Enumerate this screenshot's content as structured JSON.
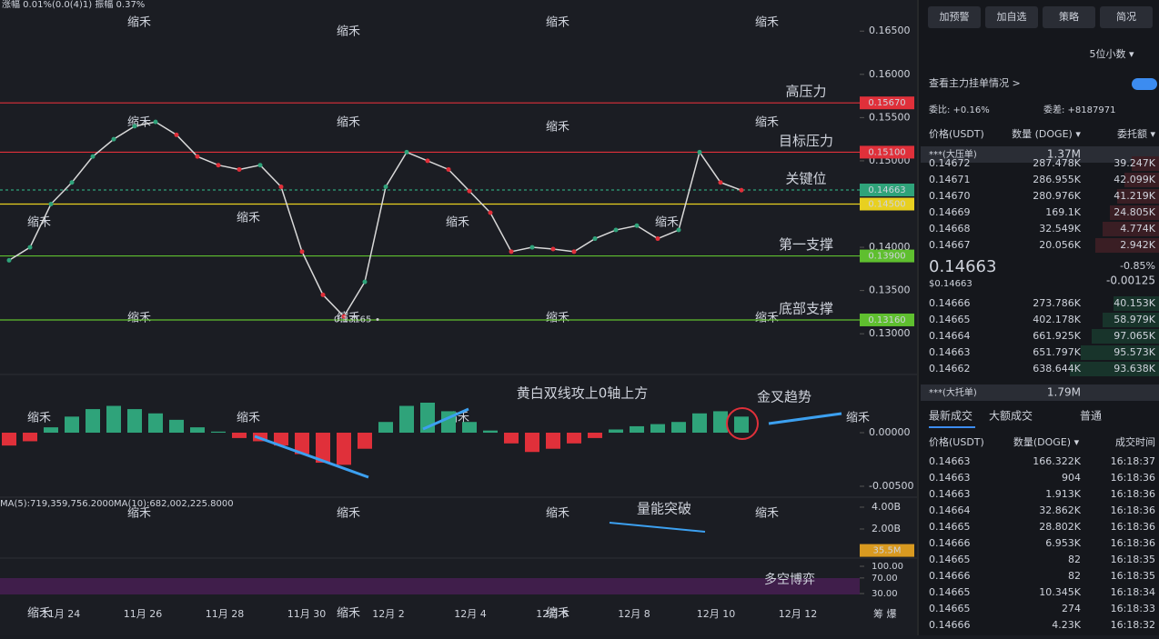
{
  "header": {
    "change_text": "涨幅 0.01%(0.0(4)1)  振幅 0.37%"
  },
  "watermark": "缩禾",
  "price_chart": {
    "type": "line",
    "color": "#d9d9d9",
    "values": [
      0.1385,
      0.14,
      0.145,
      0.1475,
      0.1505,
      0.1525,
      0.154,
      0.1545,
      0.153,
      0.1505,
      0.1495,
      0.149,
      0.1495,
      0.147,
      0.1395,
      0.1345,
      0.132,
      0.136,
      0.147,
      0.151,
      0.15,
      0.149,
      0.1465,
      0.144,
      0.1395,
      0.14,
      0.1398,
      0.1395,
      0.141,
      0.142,
      0.1425,
      0.141,
      0.142,
      0.151,
      0.1475,
      0.1466
    ],
    "ylim": [
      0.1255,
      0.1686
    ],
    "yticks": [
      {
        "value": 0.165,
        "label": "0.16500"
      },
      {
        "value": 0.16,
        "label": "0.16000"
      },
      {
        "value": 0.155,
        "label": "0.15500"
      },
      {
        "value": 0.15,
        "label": "0.15000"
      },
      {
        "value": 0.14,
        "label": "0.14000"
      },
      {
        "value": 0.135,
        "label": "0.13500"
      },
      {
        "value": 0.13,
        "label": "0.13000"
      }
    ],
    "levels": [
      {
        "label": "高压力",
        "value": 0.1567,
        "value_label": "0.15670",
        "color": "#e0303a"
      },
      {
        "label": "目标压力",
        "value": 0.151,
        "value_label": "0.15100",
        "color": "#e0303a"
      },
      {
        "label": "关键位",
        "value": 0.14663,
        "value_label": "0.14663",
        "color": "#2fa37a"
      },
      {
        "label": "第一支撑",
        "value": 0.139,
        "value_label": "0.13900",
        "color": "#5fbf2f"
      },
      {
        "label": "底部支撑",
        "value": 0.1316,
        "value_label": "0.13160",
        "color": "#5fbf2f"
      }
    ],
    "extra_level": {
      "value": 0.145,
      "label": "0.14500",
      "color": "#e8d020"
    },
    "low_marker": {
      "value": 0.13165,
      "label": "0.13165"
    }
  },
  "macd": {
    "type": "bar",
    "annotation": "黄白双线攻上0轴上方",
    "annotation2": "金叉趋势",
    "values": [
      -0.0012,
      -0.0008,
      0.0005,
      0.0015,
      0.0022,
      0.0025,
      0.0022,
      0.0018,
      0.0012,
      0.0005,
      0.0001,
      -0.0005,
      -0.0008,
      -0.0012,
      -0.002,
      -0.0028,
      -0.003,
      -0.0015,
      0.001,
      0.0025,
      0.0028,
      0.002,
      0.001,
      0.0002,
      -0.001,
      -0.0018,
      -0.0015,
      -0.001,
      -0.0005,
      0.0003,
      0.0006,
      0.0008,
      0.001,
      0.0018,
      0.002,
      0.0015
    ],
    "ylim": [
      -0.00585,
      0.00475
    ],
    "yticks": [
      {
        "value": 0,
        "label": "0.00000"
      },
      {
        "value": -0.005,
        "label": "-0.00500"
      }
    ]
  },
  "volume": {
    "ma5": "MA(5):719,359,756.2000",
    "ma10": "MA(10):682,002,225.8000",
    "annotation": "量能突破",
    "ylim": [
      0,
      5080000000
    ],
    "yticks": [
      {
        "value": 4000000000,
        "label": "4.00B"
      },
      {
        "value": 2000000000,
        "label": "2.00B"
      }
    ],
    "current": {
      "value": 35500000,
      "label": "35.5M"
    }
  },
  "rsi": {
    "annotation": "多空博弈",
    "ylim": [
      2,
      118.7
    ],
    "yticks": [
      {
        "value": 100,
        "label": "100.00"
      },
      {
        "value": 70,
        "label": "70.00"
      },
      {
        "value": 30,
        "label": "30.00"
      }
    ]
  },
  "x_axis": [
    "11月 24",
    "11月 26",
    "11月 28",
    "11月 30",
    "12月 2",
    "12月 4",
    "12月 6",
    "12月 8",
    "12月 10",
    "12月 12"
  ],
  "corner": "筹 爆",
  "panel": {
    "buttons": [
      "加预警",
      "加自选",
      "策略",
      "简况"
    ],
    "decimals": "5位小数 ▾",
    "main_orders": "查看主力挂单情况 >",
    "ratio": "委比: +0.16%",
    "diff": "委差: +8187971",
    "book_header": [
      "价格(USDT)",
      "数量 (DOGE) ▾",
      "委托额 ▾"
    ],
    "big_ask": {
      "label": "***(大压单)",
      "value": "1.37M"
    },
    "asks": [
      [
        "0.14672",
        "287.478K",
        "39.247K"
      ],
      [
        "0.14671",
        "286.955K",
        "42.099K"
      ],
      [
        "0.14670",
        "280.976K",
        "41.219K"
      ],
      [
        "0.14669",
        "169.1K",
        "24.805K"
      ],
      [
        "0.14668",
        "32.549K",
        "4.774K"
      ],
      [
        "0.14667",
        "20.056K",
        "2.942K"
      ]
    ],
    "last": {
      "price": "0.14663",
      "usd": "$0.14663",
      "pct": "-0.85%",
      "chg": "-0.00125"
    },
    "bids": [
      [
        "0.14666",
        "273.786K",
        "40.153K"
      ],
      [
        "0.14665",
        "402.178K",
        "58.979K"
      ],
      [
        "0.14664",
        "661.925K",
        "97.065K"
      ],
      [
        "0.14663",
        "651.797K",
        "95.573K"
      ],
      [
        "0.14662",
        "638.644K",
        "93.638K"
      ]
    ],
    "big_bid": {
      "label": "***(大托单)",
      "value": "1.79M"
    },
    "tabs": [
      "最新成交",
      "大额成交",
      "普通"
    ],
    "trade_header": [
      "价格(USDT)",
      "数量(DOGE) ▾",
      "成交时间"
    ],
    "trades": [
      [
        "0.14663",
        "166.322K",
        "16:18:37",
        "buy"
      ],
      [
        "0.14663",
        "904",
        "16:18:36",
        "buy"
      ],
      [
        "0.14663",
        "1.913K",
        "16:18:36",
        "sell"
      ],
      [
        "0.14664",
        "32.862K",
        "16:18:36",
        "sell"
      ],
      [
        "0.14665",
        "28.802K",
        "16:18:36",
        "sell"
      ],
      [
        "0.14666",
        "6.953K",
        "16:18:36",
        "buy"
      ],
      [
        "0.14665",
        "82",
        "16:18:35",
        "sell"
      ],
      [
        "0.14666",
        "82",
        "16:18:35",
        "buy"
      ],
      [
        "0.14665",
        "10.345K",
        "16:18:34",
        "sell"
      ],
      [
        "0.14665",
        "274",
        "16:18:33",
        "sell"
      ],
      [
        "0.14666",
        "4.23K",
        "16:18:32",
        "buy"
      ]
    ]
  }
}
